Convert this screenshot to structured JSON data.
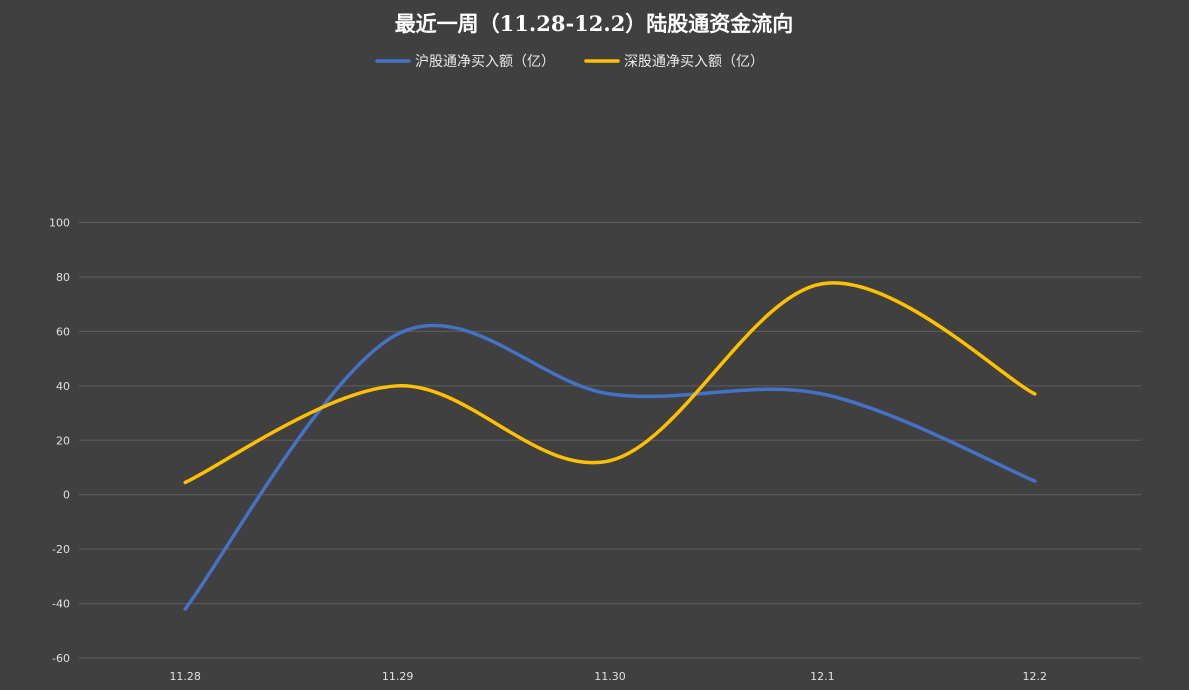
{
  "chart_data": {
    "type": "line",
    "title": "最近一周（11.28-12.2）陆股通资金流向",
    "categories": [
      "11.28",
      "11.29",
      "11.30",
      "12.1",
      "12.2"
    ],
    "ylim": [
      -60,
      100
    ],
    "yticks": [
      100,
      80,
      60,
      40,
      20,
      0,
      -20,
      -40,
      -60
    ],
    "grid": true,
    "smooth": true,
    "legend_position": "top",
    "series": [
      {
        "name": "沪股通净买入额（亿）",
        "color": "#4472C4",
        "values": [
          -42,
          59,
          37,
          37,
          5
        ]
      },
      {
        "name": "深股通净买入额（亿）",
        "color": "#FFC000",
        "values": [
          4.5,
          40,
          12.5,
          77.5,
          37
        ]
      }
    ]
  }
}
